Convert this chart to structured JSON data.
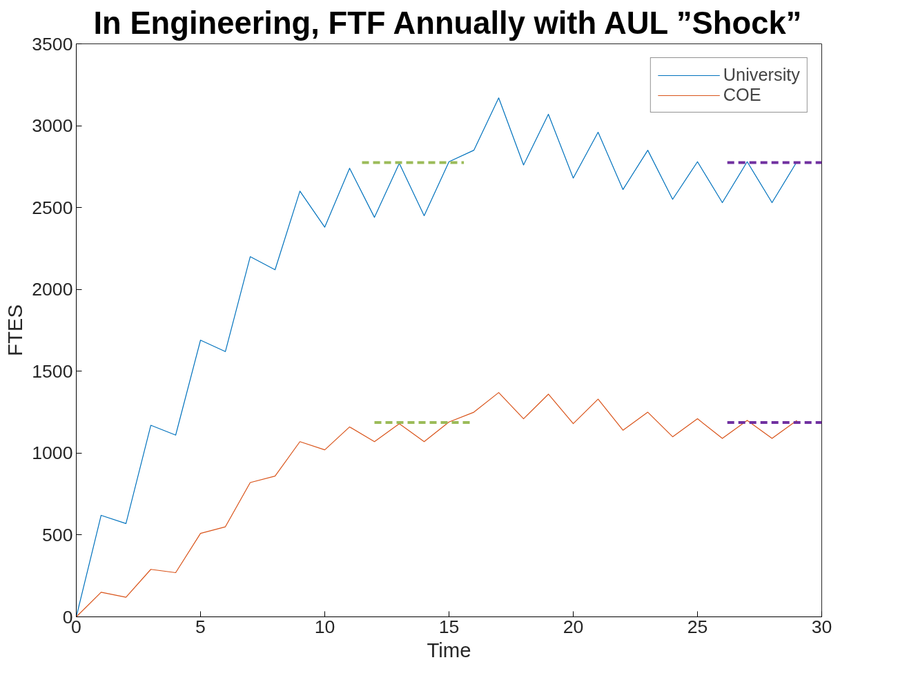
{
  "chart_data": {
    "type": "line",
    "title": "In Engineering, FTF Annually with AUL ”Shock”",
    "xlabel": "Time",
    "ylabel": "FTES",
    "x": [
      0,
      1,
      2,
      3,
      4,
      5,
      6,
      7,
      8,
      9,
      10,
      11,
      12,
      13,
      14,
      15,
      16,
      17,
      18,
      19,
      20,
      21,
      22,
      23,
      24,
      25,
      26,
      27,
      28,
      29
    ],
    "series": [
      {
        "name": "University",
        "color": "#0072bd",
        "values": [
          0,
          620,
          570,
          1170,
          1110,
          1690,
          1620,
          2200,
          2120,
          2600,
          2380,
          2740,
          2440,
          2770,
          2450,
          2780,
          2850,
          3170,
          2760,
          3070,
          2680,
          2960,
          2610,
          2850,
          2550,
          2780,
          2530,
          2780,
          2530,
          2780
        ]
      },
      {
        "name": "COE",
        "color": "#d95319",
        "values": [
          0,
          150,
          120,
          290,
          270,
          510,
          550,
          820,
          860,
          1070,
          1020,
          1160,
          1070,
          1180,
          1070,
          1190,
          1250,
          1370,
          1210,
          1360,
          1180,
          1330,
          1140,
          1250,
          1100,
          1210,
          1090,
          1200,
          1090,
          1200
        ]
      },
      {
        "type": "line",
        "x": [
          11.5,
          15.6
        ],
        "color": "#9bbb59",
        "line_style": "dashed",
        "values": [
          2775,
          2775
        ]
      },
      {
        "type": "line",
        "x": [
          12,
          16
        ],
        "color": "#9bbb59",
        "line_style": "dashed",
        "values": [
          1187,
          1187
        ]
      },
      {
        "type": "line",
        "x": [
          26.2,
          30
        ],
        "color": "#7030a0",
        "line_style": "dashed",
        "values": [
          2775,
          2775
        ]
      },
      {
        "type": "line",
        "x": [
          26.2,
          30
        ],
        "color": "#7030a0",
        "line_style": "dashed",
        "values": [
          1187,
          1187
        ]
      }
    ],
    "xlim": [
      0,
      30
    ],
    "xticks": [
      0,
      5,
      10,
      15,
      20,
      25,
      30
    ],
    "ylim": [
      0,
      3500
    ],
    "yticks": [
      0,
      500,
      1000,
      1500,
      2000,
      2500,
      3000,
      3500
    ],
    "grid": false,
    "legend": "top right",
    "marker": "none",
    "line_style": "solid"
  }
}
